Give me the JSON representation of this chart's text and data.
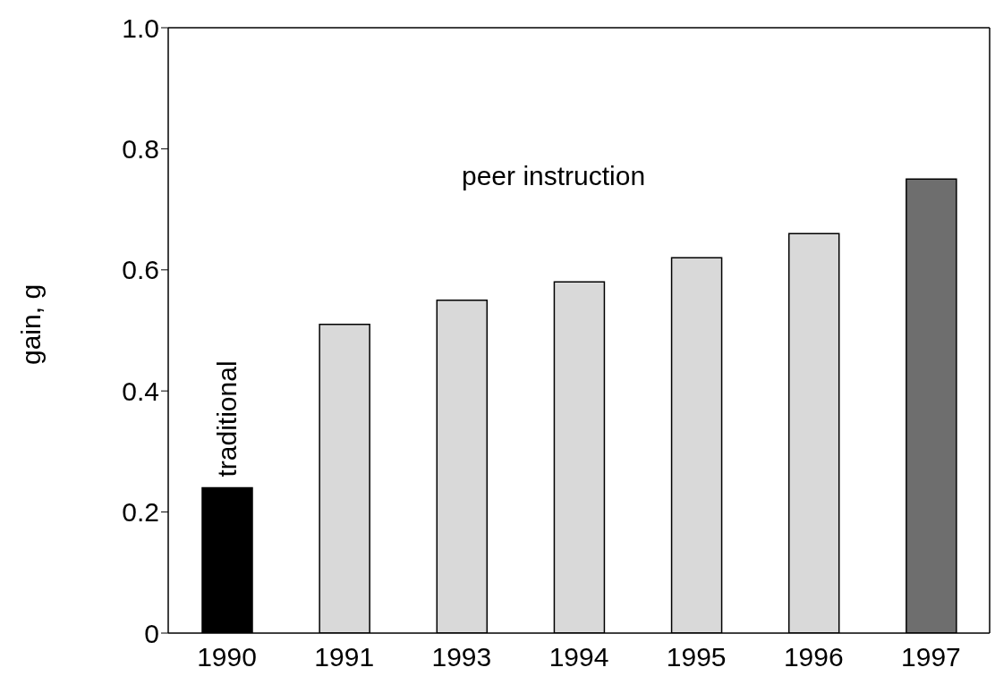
{
  "chart_data": {
    "type": "bar",
    "ylabel": "gain, g",
    "categories": [
      "1990",
      "1991",
      "1993",
      "1994",
      "1995",
      "1996",
      "1997"
    ],
    "values": [
      0.24,
      0.51,
      0.55,
      0.58,
      0.62,
      0.66,
      0.75
    ],
    "colors": [
      "#000000",
      "#d9d9d9",
      "#d9d9d9",
      "#d9d9d9",
      "#d9d9d9",
      "#d9d9d9",
      "#6e6e6e"
    ],
    "ylim": [
      0,
      1
    ],
    "yticks": [
      {
        "value": 0,
        "label": "0"
      },
      0.2,
      0.4,
      0.6,
      0.8,
      {
        "value": 1,
        "label": "1.0"
      }
    ],
    "annotations": [
      {
        "text": "traditional",
        "x": "1990",
        "y": 0.24
      },
      "peer instruction"
    ]
  }
}
